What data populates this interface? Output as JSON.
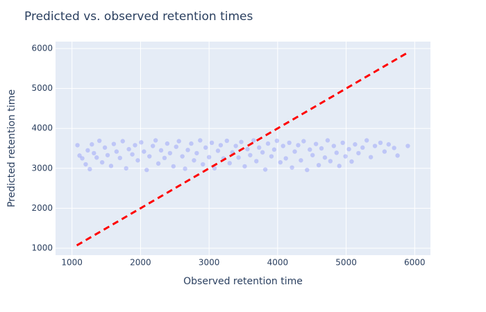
{
  "chart_data": {
    "type": "scatter",
    "title": "Predicted vs. observed retention times",
    "x_label": "Observed retention time",
    "y_label": "Predicted retention time",
    "xlim": [
      760,
      6230
    ],
    "ylim": [
      826,
      6174
    ],
    "xticks": [
      1000,
      2000,
      3000,
      4000,
      5000,
      6000
    ],
    "yticks": [
      1000,
      2000,
      3000,
      4000,
      5000,
      6000
    ],
    "grid": true,
    "background": "#e5ecf6",
    "series": [
      {
        "mode": "markers",
        "color": "#636efa",
        "opacity": 0.3,
        "x": [
          1080,
          1110,
          1150,
          1200,
          1230,
          1260,
          1290,
          1320,
          1360,
          1400,
          1440,
          1480,
          1520,
          1570,
          1610,
          1650,
          1700,
          1740,
          1790,
          1830,
          1880,
          1920,
          1960,
          2010,
          2050,
          2090,
          2130,
          2180,
          2220,
          2260,
          2300,
          2350,
          2390,
          2430,
          2480,
          2520,
          2560,
          2610,
          2650,
          2690,
          2740,
          2780,
          2820,
          2870,
          2910,
          2950,
          3000,
          3040,
          3080,
          3130,
          3170,
          3210,
          3260,
          3300,
          3340,
          3390,
          3430,
          3470,
          3520,
          3560,
          3600,
          3650,
          3690,
          3730,
          3780,
          3820,
          3860,
          3910,
          3950,
          3990,
          4040,
          4080,
          4120,
          4170,
          4210,
          4250,
          4300,
          4340,
          4380,
          4430,
          4470,
          4510,
          4560,
          4600,
          4640,
          4690,
          4730,
          4770,
          4820,
          4860,
          4900,
          4950,
          4990,
          5040,
          5080,
          5130,
          5180,
          5240,
          5300,
          5360,
          5420,
          5500,
          5560,
          5620,
          5700,
          5750,
          5900
        ],
        "y": [
          3580,
          3320,
          3250,
          3100,
          3450,
          2980,
          3600,
          3380,
          3270,
          3690,
          3150,
          3520,
          3330,
          3060,
          3610,
          3420,
          3260,
          3680,
          3000,
          3480,
          3350,
          3580,
          3200,
          3650,
          3420,
          2960,
          3300,
          3560,
          3700,
          3120,
          3450,
          3260,
          3620,
          3380,
          3050,
          3540,
          3680,
          3300,
          2990,
          3460,
          3620,
          3200,
          3380,
          3700,
          3100,
          3520,
          3280,
          3640,
          3000,
          3440,
          3580,
          3250,
          3690,
          3130,
          3400,
          3560,
          3270,
          3660,
          3050,
          3480,
          3330,
          3700,
          3180,
          3520,
          3400,
          2970,
          3620,
          3300,
          3470,
          3690,
          3150,
          3560,
          3250,
          3640,
          3020,
          3420,
          3580,
          3200,
          3680,
          2960,
          3470,
          3330,
          3610,
          3080,
          3500,
          3270,
          3700,
          3180,
          3560,
          3390,
          3060,
          3640,
          3300,
          3480,
          3170,
          3600,
          3380,
          3520,
          3700,
          3280,
          3560,
          3640,
          3420,
          3600,
          3510,
          3320,
          3560
        ]
      },
      {
        "mode": "lines",
        "color": "#ff0000",
        "dash": true,
        "x": [
          1070,
          5900
        ],
        "y": [
          1070,
          5900
        ]
      }
    ]
  }
}
